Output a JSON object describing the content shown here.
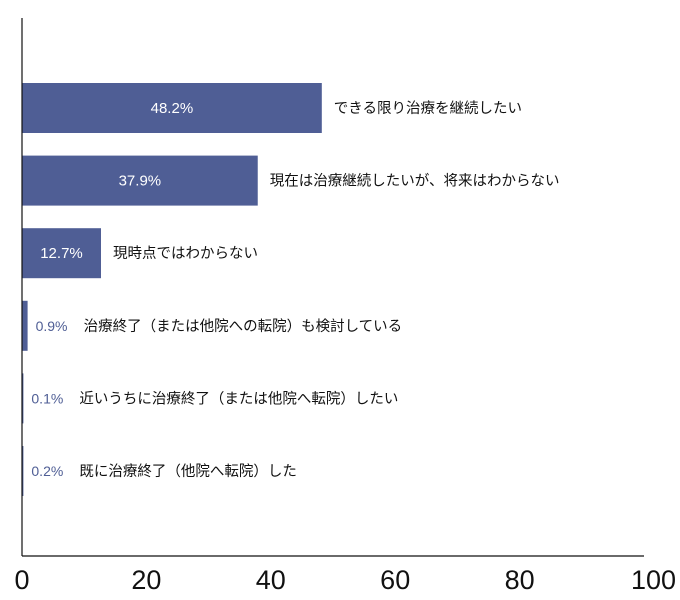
{
  "chart_data": {
    "type": "bar",
    "orientation": "horizontal",
    "title": "",
    "xlabel": "",
    "ylabel": "",
    "xlim": [
      0,
      100
    ],
    "xticks": [
      "0",
      "20",
      "40",
      "60",
      "80",
      "100"
    ],
    "grid": false,
    "bar_color": "#4f5e95",
    "categories": [
      "できる限り治療を継続したい",
      "現在は治療継続したいが、将来はわからない",
      "現時点ではわからない",
      "治療終了（または他院への転院）も検討している",
      "近いうちに治療終了（または他院へ転院）したい",
      "既に治療終了（他院へ転院）した"
    ],
    "values": [
      48.2,
      37.9,
      12.7,
      0.9,
      0.1,
      0.2
    ],
    "value_labels": [
      "48.2%",
      "37.9%",
      "12.7%",
      "0.9%",
      "0.1%",
      "0.2%"
    ]
  }
}
